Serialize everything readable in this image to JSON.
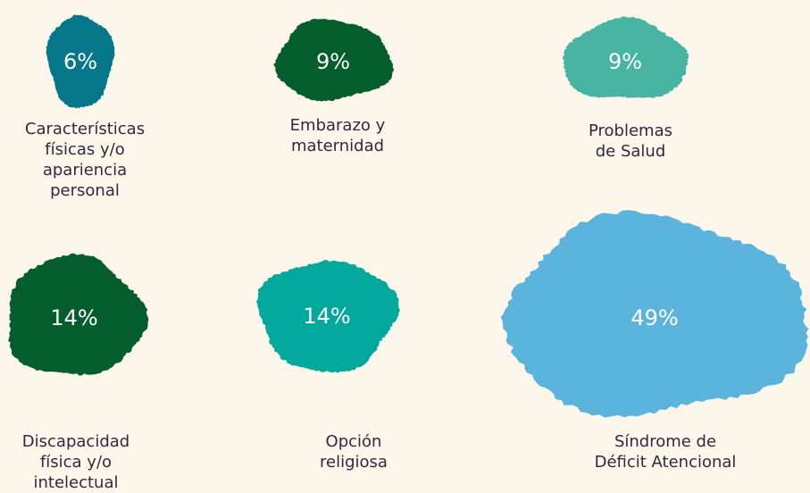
{
  "chart_data": {
    "type": "blob",
    "categories": [
      "Características\nfísicas y/o\napariencia\npersonal",
      "Embarazo y\nmaternidad",
      "Problemas\nde Salud",
      "Discapacidad\nfísica y/o\nintelectual",
      "Opción\nreligiosa",
      "Síndrome de\nDéficit Atencional"
    ],
    "values": [
      6,
      9,
      9,
      14,
      14,
      49
    ],
    "value_labels": [
      "6%",
      "9%",
      "9%",
      "14%",
      "14%",
      "49%"
    ],
    "colors": [
      "#04778a",
      "#045e2c",
      "#48b4a4",
      "#045e2c",
      "#00a99c",
      "#5bb4dc"
    ]
  }
}
